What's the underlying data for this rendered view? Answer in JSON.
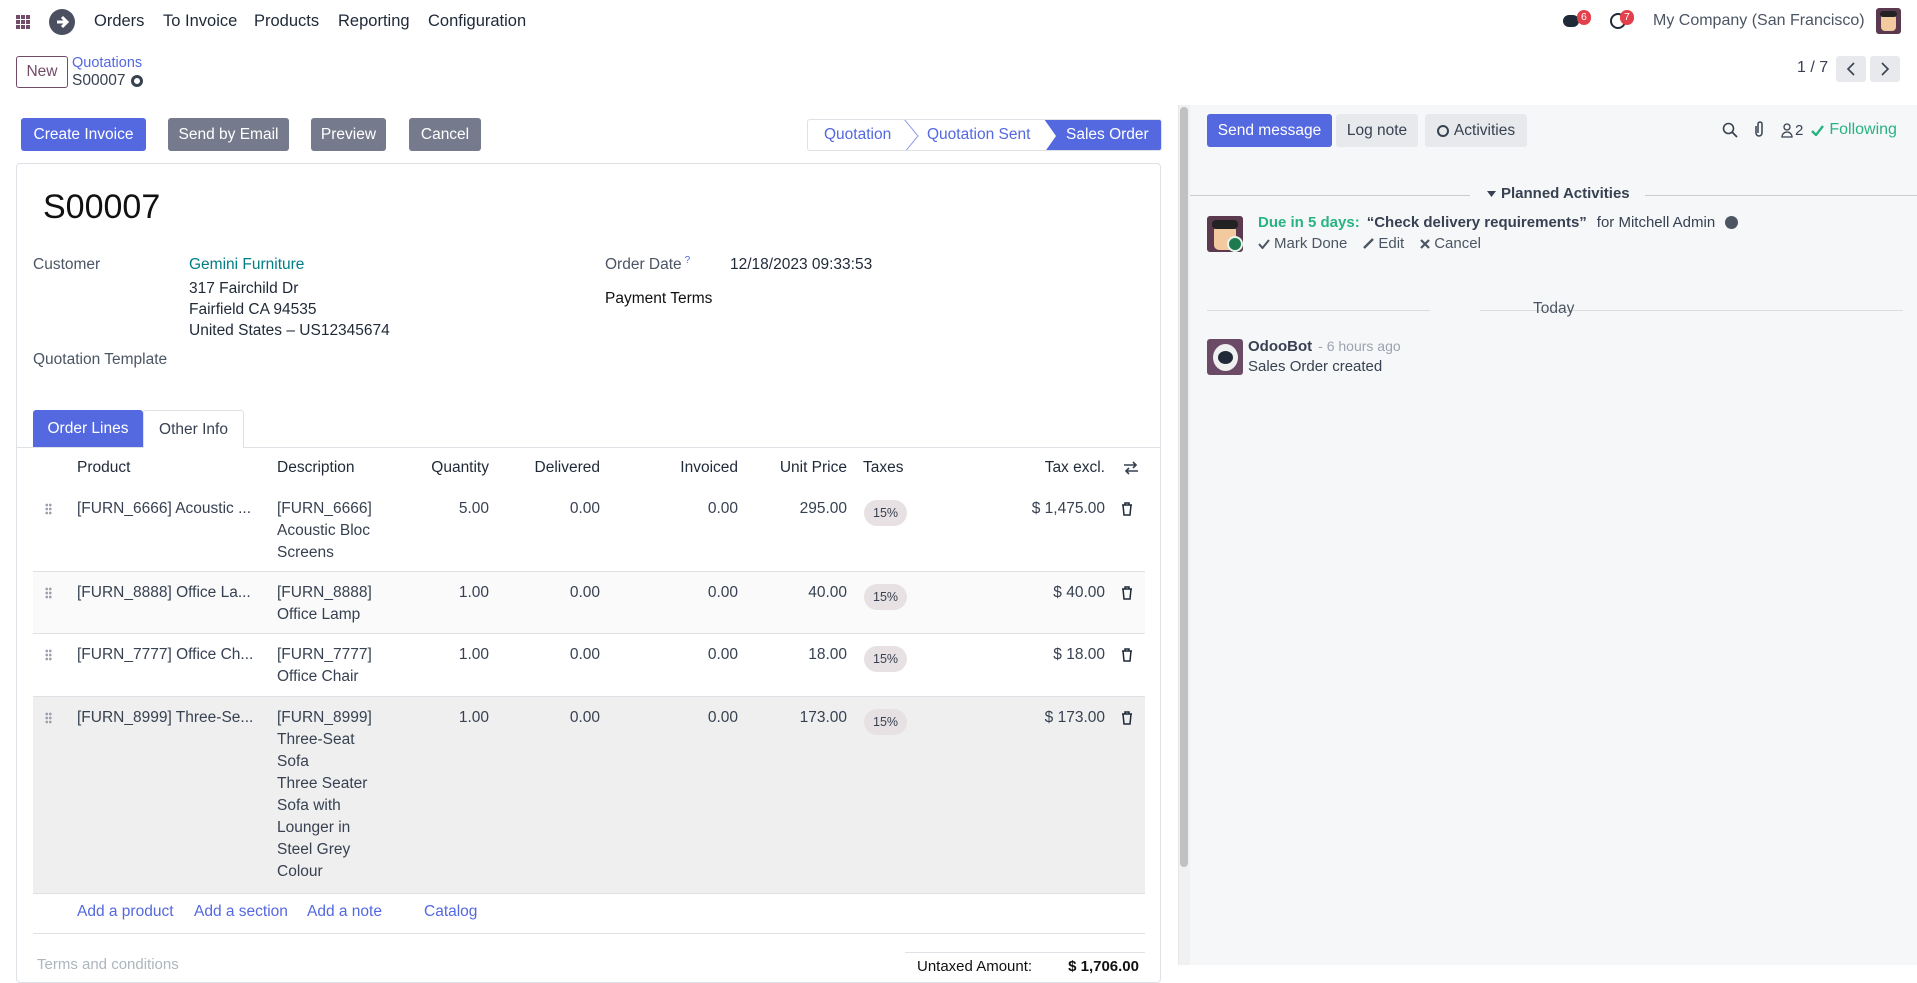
{
  "navbar": {
    "menu": [
      "Orders",
      "To Invoice",
      "Products",
      "Reporting",
      "Configuration"
    ],
    "messages_count": "6",
    "activities_count": "7",
    "company": "My Company (San Francisco)"
  },
  "control": {
    "new_label": "New",
    "breadcrumb_parent": "Quotations",
    "record": "S00007",
    "pager": "1 / 7"
  },
  "actions": {
    "create_invoice": "Create Invoice",
    "send_email": "Send by Email",
    "preview": "Preview",
    "cancel": "Cancel"
  },
  "statusbar": {
    "steps": [
      "Quotation",
      "Quotation Sent",
      "Sales Order"
    ],
    "active": "Sales Order"
  },
  "form": {
    "name": "S00007",
    "customer_label": "Customer",
    "customer": "Gemini Furniture",
    "address": [
      "317 Fairchild Dr",
      "Fairfield CA 94535",
      "United States – US12345674"
    ],
    "template_label": "Quotation Template",
    "order_date_label": "Order Date",
    "order_date_help": "?",
    "order_date": "12/18/2023 09:33:53",
    "payment_terms_label": "Payment Terms"
  },
  "tabs": [
    "Order Lines",
    "Other Info"
  ],
  "table": {
    "headers": [
      "Product",
      "Description",
      "Quantity",
      "Delivered",
      "Invoiced",
      "Unit Price",
      "Taxes",
      "Tax excl."
    ],
    "rows": [
      {
        "product": "[FURN_6666] Acoustic ...",
        "description": [
          "[FURN_6666]",
          "Acoustic Bloc",
          "Screens"
        ],
        "quantity": "5.00",
        "delivered": "0.00",
        "invoiced": "0.00",
        "unit_price": "295.00",
        "taxes": "15%",
        "subtotal": "$ 1,475.00"
      },
      {
        "product": "[FURN_8888] Office La...",
        "description": [
          "[FURN_8888]",
          "Office Lamp"
        ],
        "quantity": "1.00",
        "delivered": "0.00",
        "invoiced": "0.00",
        "unit_price": "40.00",
        "taxes": "15%",
        "subtotal": "$ 40.00"
      },
      {
        "product": "[FURN_7777] Office Ch...",
        "description": [
          "[FURN_7777]",
          "Office Chair"
        ],
        "quantity": "1.00",
        "delivered": "0.00",
        "invoiced": "0.00",
        "unit_price": "18.00",
        "taxes": "15%",
        "subtotal": "$ 18.00"
      },
      {
        "product": "[FURN_8999] Three-Se...",
        "description": [
          "[FURN_8999]",
          "Three-Seat",
          "Sofa",
          "Three Seater",
          "Sofa with",
          "Lounger in",
          "Steel Grey",
          "Colour"
        ],
        "quantity": "1.00",
        "delivered": "0.00",
        "invoiced": "0.00",
        "unit_price": "173.00",
        "taxes": "15%",
        "subtotal": "$ 173.00"
      }
    ],
    "add_links": [
      "Add a product",
      "Add a section",
      "Add a note",
      "Catalog"
    ]
  },
  "footer": {
    "terms_placeholder": "Terms and conditions",
    "untaxed_label": "Untaxed Amount:",
    "untaxed_value": "$ 1,706.00"
  },
  "chatter": {
    "send_message": "Send message",
    "log_note": "Log note",
    "activities": "Activities",
    "followers_count": "2",
    "following": "Following",
    "planned_header": "Planned Activities",
    "activity": {
      "due": "Due in 5 days:",
      "summary": "“Check delivery requirements”",
      "assignee": "for Mitchell Admin",
      "mark_done": "Mark Done",
      "edit": "Edit",
      "cancel": "Cancel"
    },
    "date_separator": "Today",
    "message": {
      "author": "OdooBot",
      "time": "- 6 hours ago",
      "body": "Sales Order created"
    }
  },
  "colors": {
    "primary": "#5468e0",
    "brand": "#714b67",
    "success": "#28b381",
    "secondary_button": "#757b8c"
  }
}
